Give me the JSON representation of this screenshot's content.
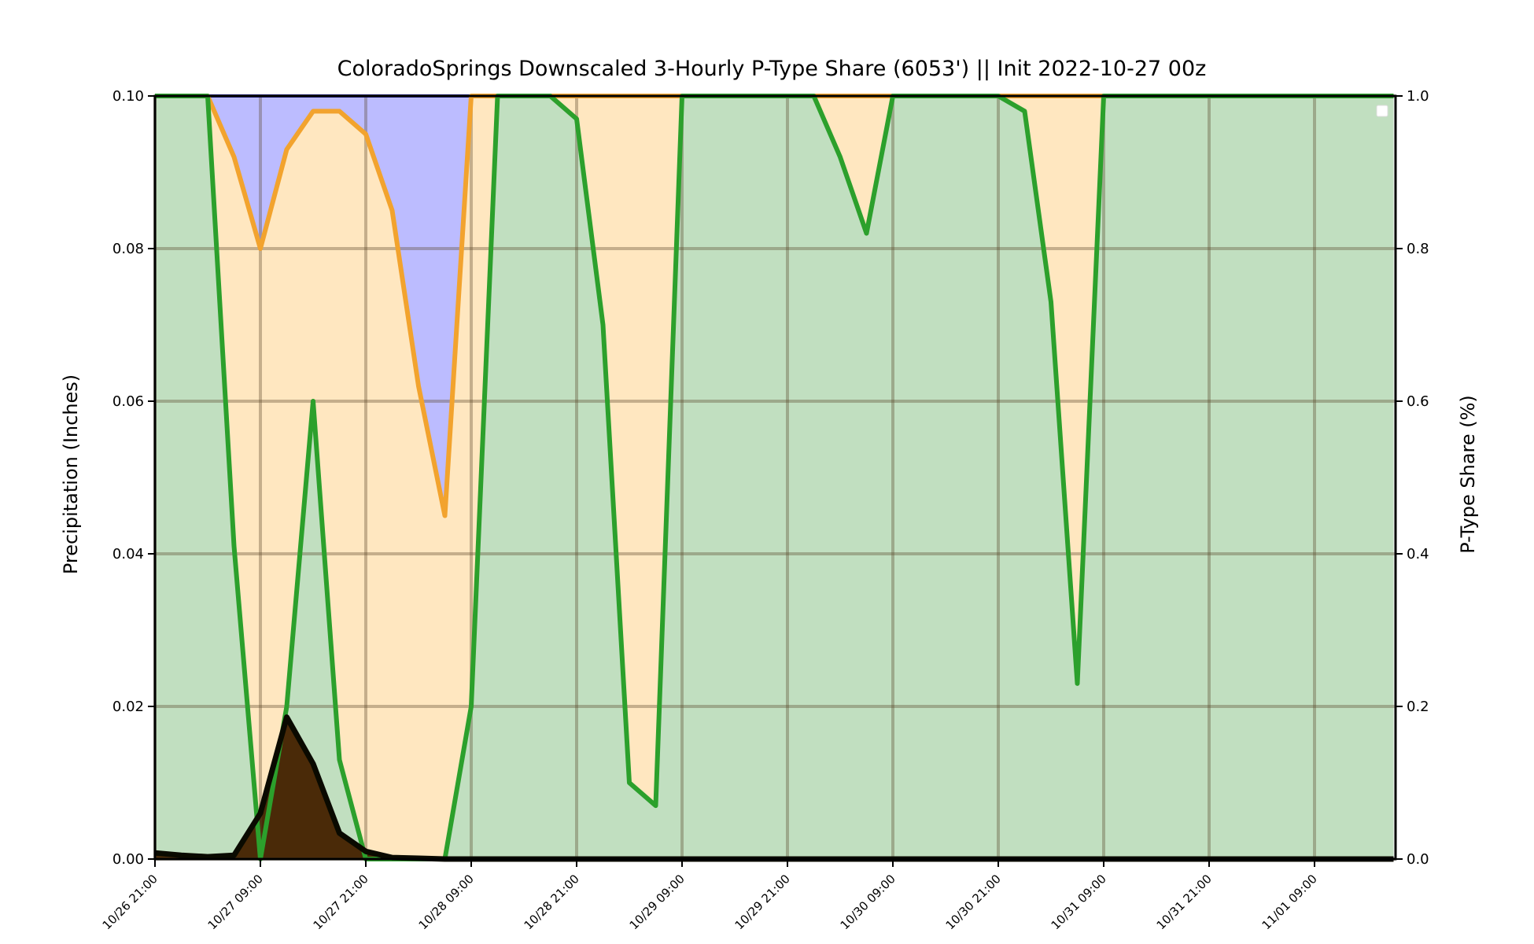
{
  "chart_data": {
    "type": "area",
    "title": "ColoradoSprings Downscaled 3-Hourly P-Type Share (6053') || Init 2022-10-27 00z",
    "ylabel": "Precipitation (Inches)",
    "y2label": "P-Type Share (%)",
    "ylim": [
      0,
      0.1
    ],
    "y2lim": [
      0,
      1.0
    ],
    "grid": true,
    "legend": "top-right (empty)",
    "x": [
      "10/26 21:00",
      "10/27 00:00",
      "10/27 03:00",
      "10/27 06:00",
      "10/27 09:00",
      "10/27 12:00",
      "10/27 15:00",
      "10/27 18:00",
      "10/27 21:00",
      "10/28 00:00",
      "10/28 03:00",
      "10/28 06:00",
      "10/28 09:00",
      "10/28 12:00",
      "10/28 15:00",
      "10/28 18:00",
      "10/28 21:00",
      "10/29 00:00",
      "10/29 03:00",
      "10/29 06:00",
      "10/29 09:00",
      "10/29 12:00",
      "10/29 15:00",
      "10/29 18:00",
      "10/29 21:00",
      "10/30 00:00",
      "10/30 03:00",
      "10/30 06:00",
      "10/30 09:00",
      "10/30 12:00",
      "10/30 15:00",
      "10/30 18:00",
      "10/30 21:00",
      "10/31 00:00",
      "10/31 03:00",
      "10/31 06:00",
      "10/31 09:00",
      "10/31 12:00",
      "10/31 15:00",
      "10/31 18:00",
      "10/31 21:00",
      "11/01 00:00",
      "11/01 03:00",
      "11/01 06:00",
      "11/01 09:00",
      "11/01 12:00",
      "11/01 15:00",
      "11/01 18:00"
    ],
    "xticks": [
      "10/26 21:00",
      "10/27 09:00",
      "10/27 21:00",
      "10/28 09:00",
      "10/28 21:00",
      "10/29 09:00",
      "10/29 21:00",
      "10/30 09:00",
      "10/30 21:00",
      "10/31 09:00",
      "10/31 21:00",
      "11/01 09:00"
    ],
    "yticks": [
      "0.00",
      "0.02",
      "0.04",
      "0.06",
      "0.08",
      "0.10"
    ],
    "y2ticks": [
      "0.0",
      "0.2",
      "0.4",
      "0.6",
      "0.8",
      "1.0"
    ],
    "series": [
      {
        "key": "rain_share",
        "color": "#2ca02c",
        "fill": "#c1dfc0",
        "values": [
          1.0,
          1.0,
          1.0,
          0.41,
          0.0,
          0.2,
          0.6,
          0.13,
          0.0,
          0.0,
          0.0,
          0.0,
          0.2,
          1.0,
          1.0,
          1.0,
          0.97,
          0.7,
          0.1,
          0.07,
          1.0,
          1.0,
          1.0,
          1.0,
          1.0,
          1.0,
          0.92,
          0.82,
          1.0,
          1.0,
          1.0,
          1.0,
          1.0,
          0.98,
          0.73,
          0.23,
          1.0,
          1.0,
          1.0,
          1.0,
          1.0,
          1.0,
          1.0,
          1.0,
          1.0,
          1.0,
          1.0,
          1.0
        ]
      },
      {
        "key": "snow_share",
        "color": "#f2a32e",
        "fill": "#ffe7c0",
        "values": [
          1.0,
          1.0,
          1.0,
          0.92,
          0.8,
          0.93,
          0.98,
          0.98,
          0.95,
          0.85,
          0.62,
          0.45,
          1.0,
          1.0,
          1.0,
          1.0,
          1.0,
          1.0,
          1.0,
          1.0,
          1.0,
          1.0,
          1.0,
          1.0,
          1.0,
          1.0,
          1.0,
          1.0,
          1.0,
          1.0,
          1.0,
          1.0,
          1.0,
          1.0,
          1.0,
          1.0,
          1.0,
          1.0,
          1.0,
          1.0,
          1.0,
          1.0,
          1.0,
          1.0,
          1.0,
          1.0,
          1.0,
          1.0
        ]
      },
      {
        "key": "mix_share",
        "color": "#1a1aa0",
        "fill": "#bcbcff",
        "values": [
          1.0,
          1.0,
          1.0,
          1.0,
          1.0,
          1.0,
          1.0,
          1.0,
          1.0,
          1.0,
          1.0,
          1.0,
          1.0,
          1.0,
          1.0,
          1.0,
          1.0,
          1.0,
          1.0,
          1.0,
          1.0,
          1.0,
          1.0,
          1.0,
          1.0,
          1.0,
          1.0,
          1.0,
          1.0,
          1.0,
          1.0,
          1.0,
          1.0,
          1.0,
          1.0,
          1.0,
          1.0,
          1.0,
          1.0,
          1.0,
          1.0,
          1.0,
          1.0,
          1.0,
          1.0,
          1.0,
          1.0,
          1.0
        ]
      },
      {
        "key": "precip",
        "color": "#0a0a00",
        "fill": "#4a2a08",
        "values": [
          0.0008,
          0.0005,
          0.0003,
          0.0005,
          0.006,
          0.0186,
          0.0125,
          0.0034,
          0.001,
          0.0002,
          0.0001,
          0.0,
          0.0,
          0.0,
          0.0,
          0.0,
          0.0,
          0.0,
          0.0,
          0.0,
          0.0,
          0.0,
          0.0,
          0.0,
          0.0,
          0.0,
          0.0,
          0.0,
          0.0,
          0.0,
          0.0,
          0.0,
          0.0,
          0.0,
          0.0,
          0.0,
          0.0,
          0.0,
          0.0,
          0.0,
          0.0,
          0.0,
          0.0,
          0.0,
          0.0,
          0.0,
          0.0,
          0.0
        ]
      }
    ]
  }
}
